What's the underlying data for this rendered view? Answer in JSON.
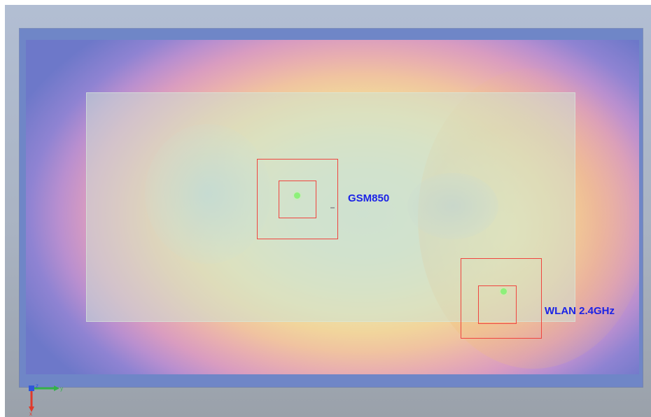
{
  "colors": {
    "viewport_background": "#b2bed3",
    "frame": "#6f86c7",
    "scan_box": "#f0443e",
    "probe_dot": "#8df07a",
    "label_text": "#1b23e6"
  },
  "markers": [
    {
      "label": "GSM850"
    },
    {
      "label": "WLAN 2.4GHz"
    }
  ],
  "axis_triad": {
    "x_label": "x",
    "y_label": "y",
    "z_label": "z"
  }
}
